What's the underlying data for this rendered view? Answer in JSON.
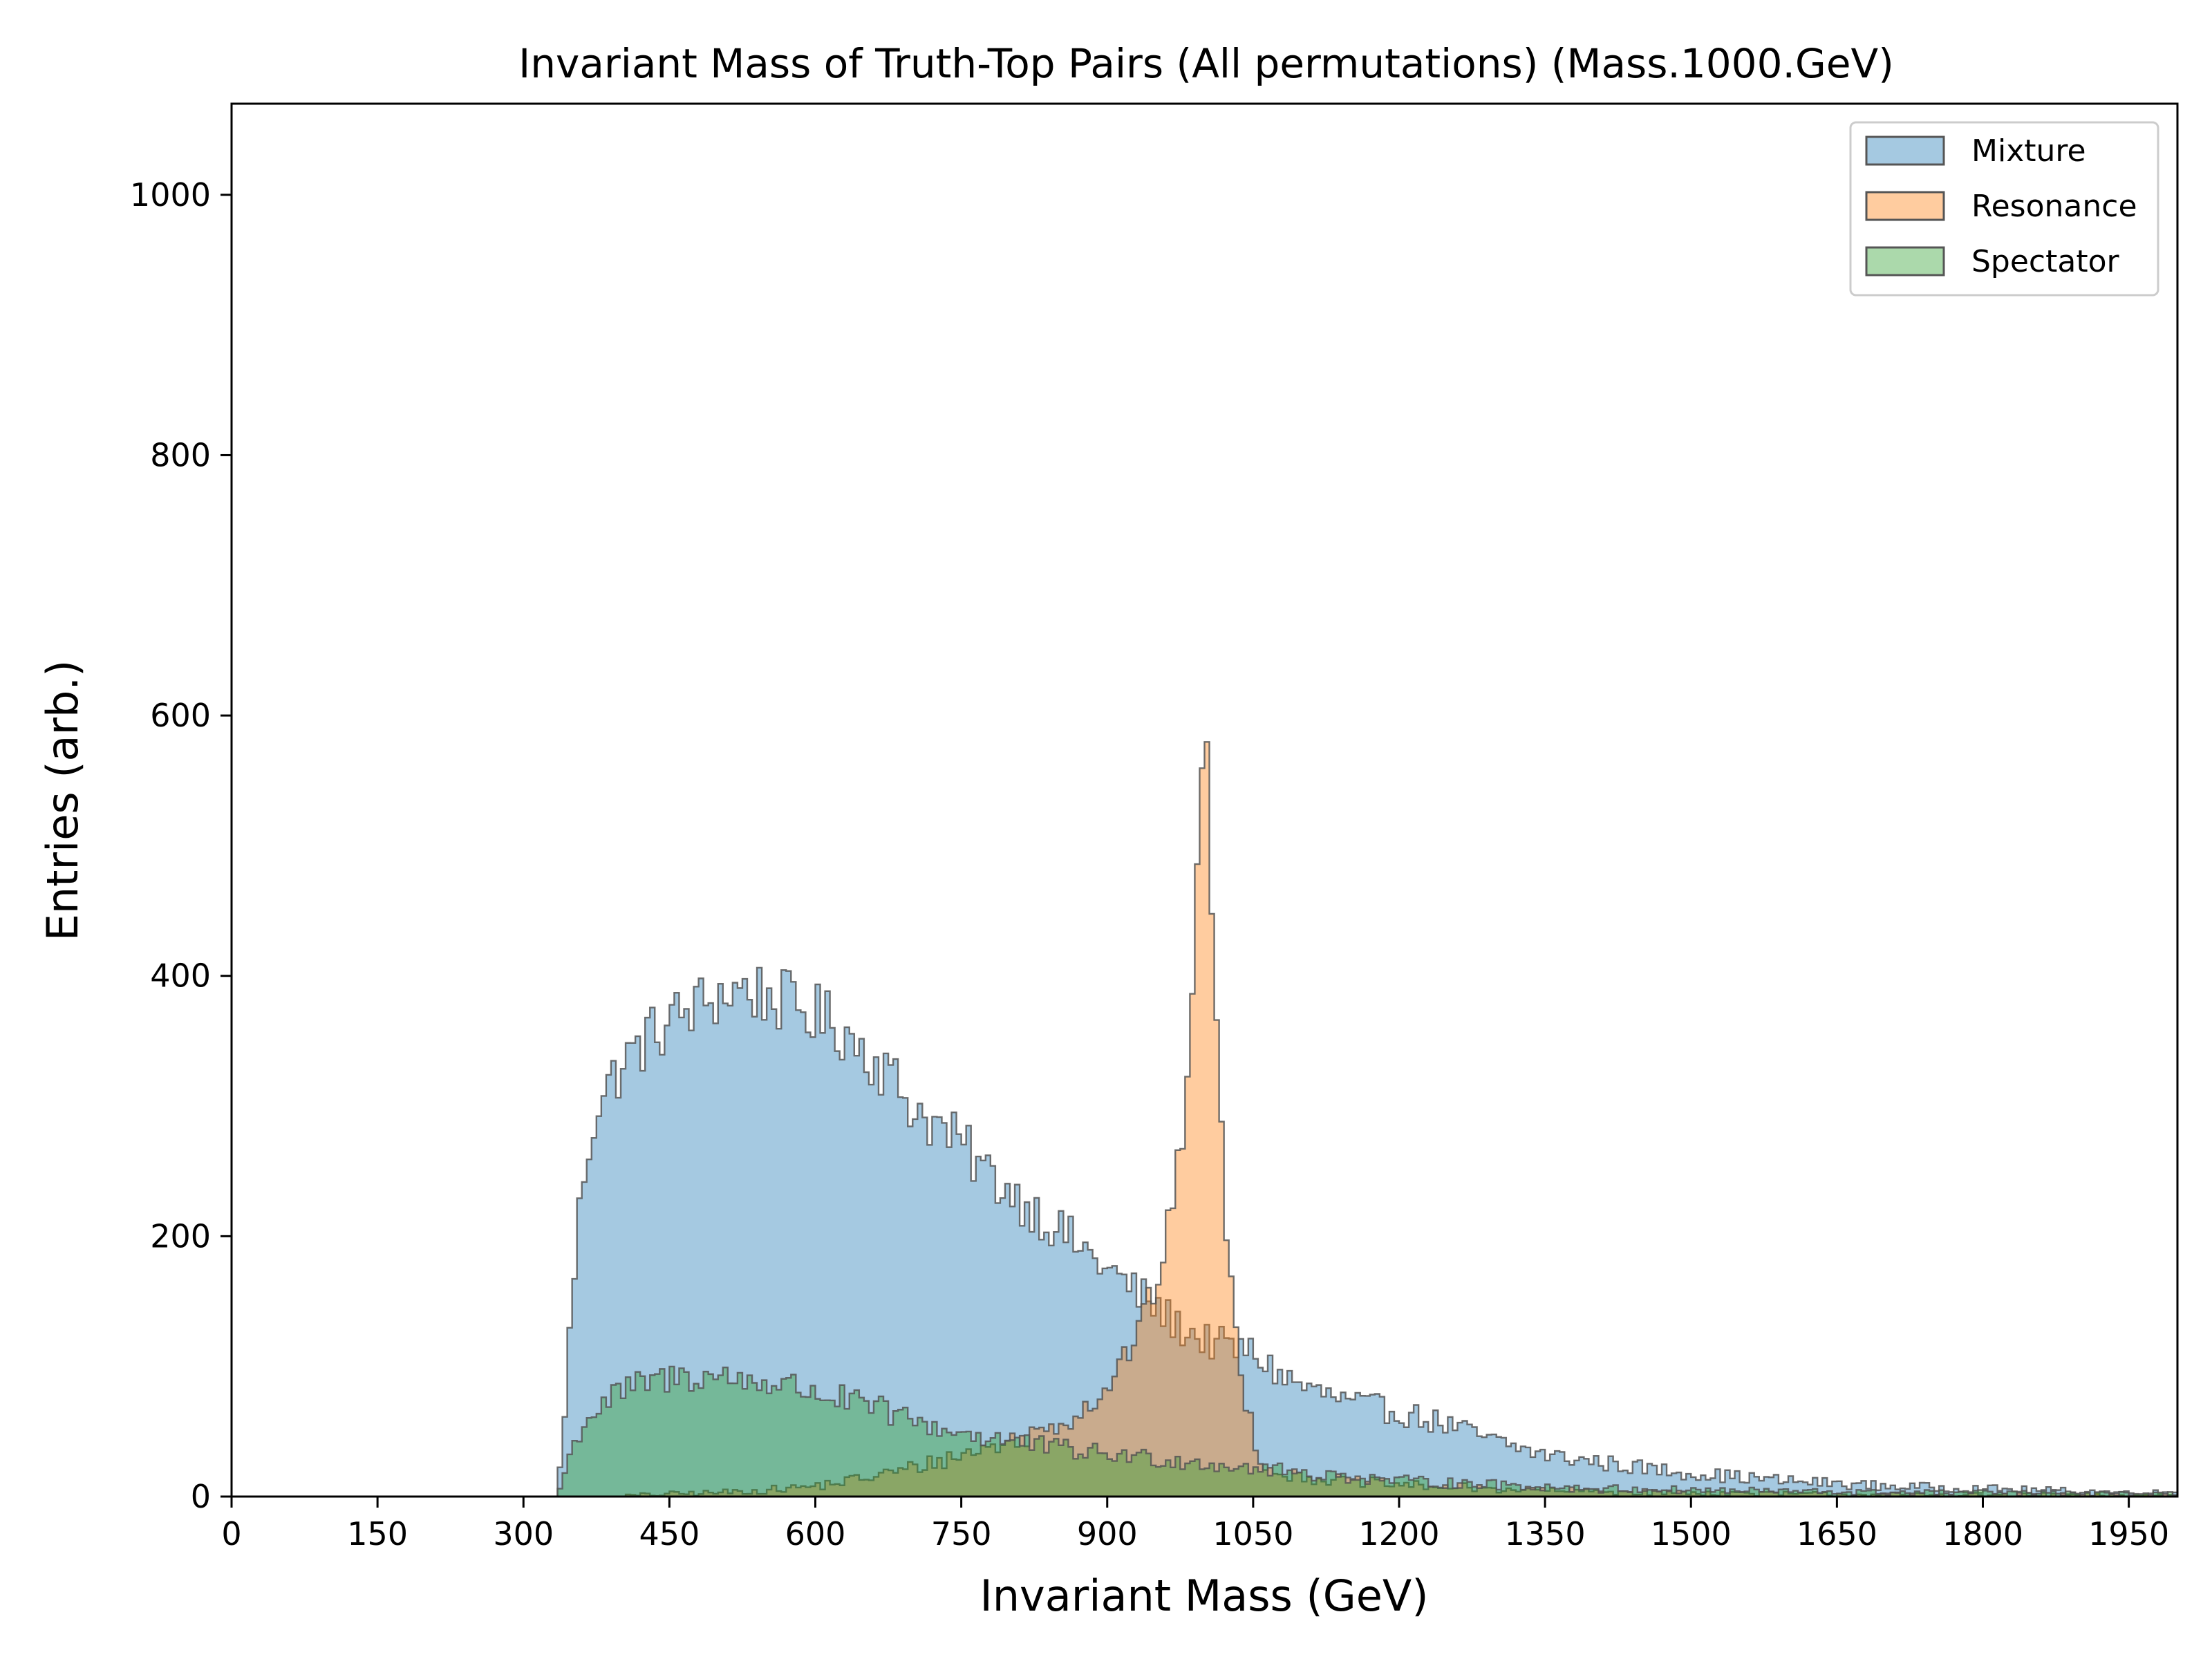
{
  "chart_data": {
    "type": "histogram",
    "title": "Invariant Mass of Truth-Top Pairs (All permutations) (Mass.1000.GeV)",
    "xlabel": "Invariant Mass (GeV)",
    "ylabel": "Entries (arb.)",
    "xlim": [
      0,
      2000
    ],
    "ylim": [
      0,
      1070
    ],
    "x_ticks": [
      "0",
      "150",
      "300",
      "450",
      "600",
      "750",
      "900",
      "1050",
      "1200",
      "1350",
      "1500",
      "1650",
      "1800",
      "1950"
    ],
    "x_tick_values": [
      0,
      150,
      300,
      450,
      600,
      750,
      900,
      1050,
      1200,
      1350,
      1500,
      1650,
      1800,
      1950
    ],
    "y_ticks": [
      "0",
      "200",
      "400",
      "600",
      "800",
      "1000"
    ],
    "y_tick_values": [
      0,
      200,
      400,
      600,
      800,
      1000
    ],
    "grid": false,
    "legend_position": "top-right",
    "bin_width": 5,
    "series": [
      {
        "name": "Mixture",
        "color": "#1f77b4",
        "fill_opacity": 0.4,
        "edge_color": "#555555",
        "curve": [
          [
            0,
            0
          ],
          [
            335,
            0
          ],
          [
            340,
            40
          ],
          [
            350,
            150
          ],
          [
            360,
            240
          ],
          [
            375,
            300
          ],
          [
            400,
            330
          ],
          [
            425,
            350
          ],
          [
            450,
            365
          ],
          [
            475,
            375
          ],
          [
            500,
            385
          ],
          [
            525,
            390
          ],
          [
            550,
            385
          ],
          [
            575,
            378
          ],
          [
            600,
            370
          ],
          [
            625,
            360
          ],
          [
            650,
            345
          ],
          [
            675,
            325
          ],
          [
            700,
            300
          ],
          [
            725,
            285
          ],
          [
            750,
            270
          ],
          [
            775,
            250
          ],
          [
            800,
            235
          ],
          [
            825,
            220
          ],
          [
            850,
            205
          ],
          [
            875,
            190
          ],
          [
            900,
            175
          ],
          [
            925,
            160
          ],
          [
            950,
            145
          ],
          [
            975,
            130
          ],
          [
            1000,
            120
          ],
          [
            1025,
            115
          ],
          [
            1050,
            110
          ],
          [
            1075,
            95
          ],
          [
            1100,
            85
          ],
          [
            1125,
            78
          ],
          [
            1150,
            72
          ],
          [
            1200,
            65
          ],
          [
            1250,
            55
          ],
          [
            1300,
            42
          ],
          [
            1350,
            32
          ],
          [
            1400,
            27
          ],
          [
            1450,
            22
          ],
          [
            1500,
            18
          ],
          [
            1550,
            15
          ],
          [
            1600,
            12
          ],
          [
            1650,
            10
          ],
          [
            1700,
            8
          ],
          [
            1750,
            7
          ],
          [
            1800,
            6
          ],
          [
            1850,
            5
          ],
          [
            1900,
            4
          ],
          [
            1950,
            3
          ],
          [
            2000,
            3
          ]
        ]
      },
      {
        "name": "Resonance",
        "color": "#ff7f0e",
        "fill_opacity": 0.4,
        "edge_color": "#555555",
        "curve": [
          [
            0,
            0
          ],
          [
            400,
            0
          ],
          [
            450,
            2
          ],
          [
            500,
            3
          ],
          [
            550,
            5
          ],
          [
            600,
            8
          ],
          [
            650,
            14
          ],
          [
            700,
            22
          ],
          [
            750,
            32
          ],
          [
            800,
            42
          ],
          [
            830,
            50
          ],
          [
            860,
            60
          ],
          [
            880,
            70
          ],
          [
            900,
            85
          ],
          [
            920,
            110
          ],
          [
            940,
            140
          ],
          [
            960,
            190
          ],
          [
            975,
            260
          ],
          [
            985,
            360
          ],
          [
            993,
            480
          ],
          [
            997,
            560
          ],
          [
            1000,
            570
          ],
          [
            1003,
            550
          ],
          [
            1008,
            460
          ],
          [
            1015,
            300
          ],
          [
            1025,
            180
          ],
          [
            1035,
            110
          ],
          [
            1045,
            65
          ],
          [
            1055,
            35
          ],
          [
            1065,
            22
          ],
          [
            1080,
            18
          ],
          [
            1100,
            15
          ],
          [
            1150,
            12
          ],
          [
            1200,
            9
          ],
          [
            1300,
            6
          ],
          [
            1400,
            4
          ],
          [
            1500,
            3
          ],
          [
            1600,
            2
          ],
          [
            1800,
            1
          ],
          [
            2000,
            1
          ]
        ]
      },
      {
        "name": "Spectator",
        "color": "#2ca02c",
        "fill_opacity": 0.4,
        "edge_color": "#555555",
        "curve": [
          [
            0,
            0
          ],
          [
            335,
            0
          ],
          [
            345,
            25
          ],
          [
            360,
            55
          ],
          [
            380,
            70
          ],
          [
            400,
            80
          ],
          [
            430,
            88
          ],
          [
            460,
            92
          ],
          [
            490,
            93
          ],
          [
            520,
            90
          ],
          [
            550,
            88
          ],
          [
            580,
            84
          ],
          [
            610,
            78
          ],
          [
            640,
            72
          ],
          [
            670,
            66
          ],
          [
            700,
            58
          ],
          [
            730,
            52
          ],
          [
            760,
            48
          ],
          [
            790,
            44
          ],
          [
            820,
            40
          ],
          [
            850,
            37
          ],
          [
            880,
            34
          ],
          [
            910,
            32
          ],
          [
            940,
            30
          ],
          [
            970,
            28
          ],
          [
            1000,
            26
          ],
          [
            1050,
            22
          ],
          [
            1100,
            18
          ],
          [
            1150,
            15
          ],
          [
            1200,
            12
          ],
          [
            1300,
            9
          ],
          [
            1400,
            6
          ],
          [
            1500,
            5
          ],
          [
            1600,
            4
          ],
          [
            1700,
            3
          ],
          [
            1800,
            3
          ],
          [
            1900,
            2
          ],
          [
            2000,
            2
          ]
        ]
      }
    ]
  }
}
